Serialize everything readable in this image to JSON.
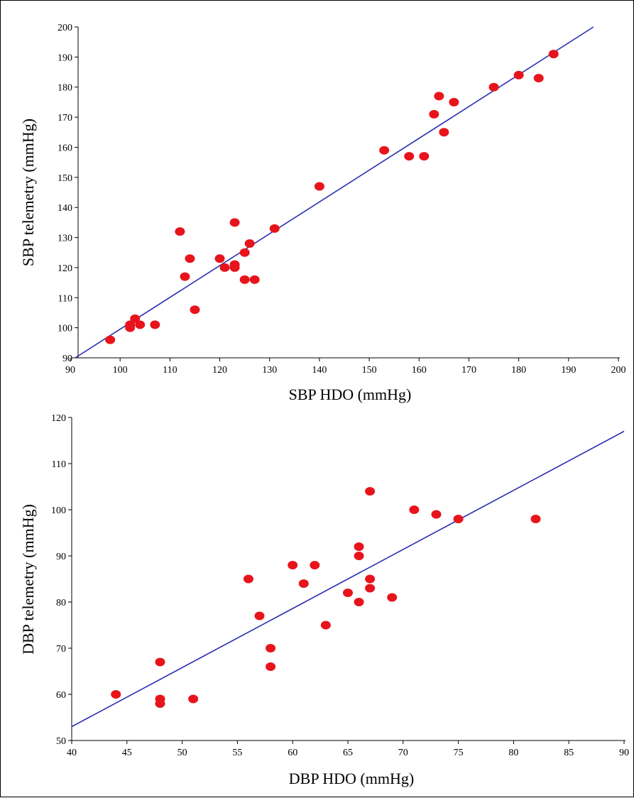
{
  "colors": {
    "point": "#e8141b",
    "fit_line": "#2a2fb0",
    "axis": "#000000"
  },
  "chart_data": [
    {
      "type": "scatter",
      "xlabel": "SBP HDO (mmHg)",
      "ylabel": "SBP telemetry (mmHg)",
      "xlim": [
        90,
        200
      ],
      "ylim": [
        90,
        200
      ],
      "xticks": [
        90,
        100,
        110,
        120,
        130,
        140,
        150,
        160,
        170,
        180,
        190,
        200
      ],
      "yticks": [
        90,
        100,
        110,
        120,
        130,
        140,
        150,
        160,
        170,
        180,
        190,
        200
      ],
      "grid": false,
      "fit_line": {
        "x": [
          91,
          195
        ],
        "y": [
          90,
          200
        ]
      },
      "points": [
        {
          "x": 98,
          "y": 96
        },
        {
          "x": 102,
          "y": 100
        },
        {
          "x": 102,
          "y": 101
        },
        {
          "x": 103,
          "y": 103
        },
        {
          "x": 104,
          "y": 101
        },
        {
          "x": 107,
          "y": 101
        },
        {
          "x": 112,
          "y": 132
        },
        {
          "x": 113,
          "y": 117
        },
        {
          "x": 114,
          "y": 123
        },
        {
          "x": 115,
          "y": 106
        },
        {
          "x": 120,
          "y": 123
        },
        {
          "x": 121,
          "y": 120
        },
        {
          "x": 123,
          "y": 135
        },
        {
          "x": 123,
          "y": 121
        },
        {
          "x": 123,
          "y": 120
        },
        {
          "x": 125,
          "y": 125
        },
        {
          "x": 125,
          "y": 116
        },
        {
          "x": 126,
          "y": 128
        },
        {
          "x": 127,
          "y": 116
        },
        {
          "x": 131,
          "y": 133
        },
        {
          "x": 140,
          "y": 147
        },
        {
          "x": 153,
          "y": 159
        },
        {
          "x": 158,
          "y": 157
        },
        {
          "x": 161,
          "y": 157
        },
        {
          "x": 163,
          "y": 171
        },
        {
          "x": 164,
          "y": 177
        },
        {
          "x": 165,
          "y": 165
        },
        {
          "x": 167,
          "y": 175
        },
        {
          "x": 175,
          "y": 180
        },
        {
          "x": 180,
          "y": 184
        },
        {
          "x": 184,
          "y": 183
        },
        {
          "x": 187,
          "y": 191
        }
      ]
    },
    {
      "type": "scatter",
      "xlabel": "DBP HDO (mmHg)",
      "ylabel": "DBP telemetry (mmHg)",
      "xlim": [
        40,
        90
      ],
      "ylim": [
        50,
        120
      ],
      "xticks": [
        40,
        45,
        50,
        55,
        60,
        65,
        70,
        75,
        80,
        85,
        90
      ],
      "yticks": [
        50,
        60,
        70,
        80,
        90,
        100,
        110,
        120
      ],
      "grid": false,
      "fit_line": {
        "x": [
          40,
          90
        ],
        "y": [
          53,
          117
        ]
      },
      "points": [
        {
          "x": 44,
          "y": 60
        },
        {
          "x": 48,
          "y": 67
        },
        {
          "x": 48,
          "y": 59
        },
        {
          "x": 48,
          "y": 58
        },
        {
          "x": 51,
          "y": 59
        },
        {
          "x": 56,
          "y": 85
        },
        {
          "x": 57,
          "y": 77
        },
        {
          "x": 58,
          "y": 70
        },
        {
          "x": 58,
          "y": 66
        },
        {
          "x": 60,
          "y": 88
        },
        {
          "x": 61,
          "y": 84
        },
        {
          "x": 62,
          "y": 88
        },
        {
          "x": 63,
          "y": 75
        },
        {
          "x": 65,
          "y": 82
        },
        {
          "x": 66,
          "y": 92
        },
        {
          "x": 66,
          "y": 90
        },
        {
          "x": 66,
          "y": 80
        },
        {
          "x": 67,
          "y": 104
        },
        {
          "x": 67,
          "y": 85
        },
        {
          "x": 67,
          "y": 83
        },
        {
          "x": 69,
          "y": 81
        },
        {
          "x": 71,
          "y": 100
        },
        {
          "x": 73,
          "y": 99
        },
        {
          "x": 75,
          "y": 98
        },
        {
          "x": 82,
          "y": 98
        }
      ]
    }
  ]
}
